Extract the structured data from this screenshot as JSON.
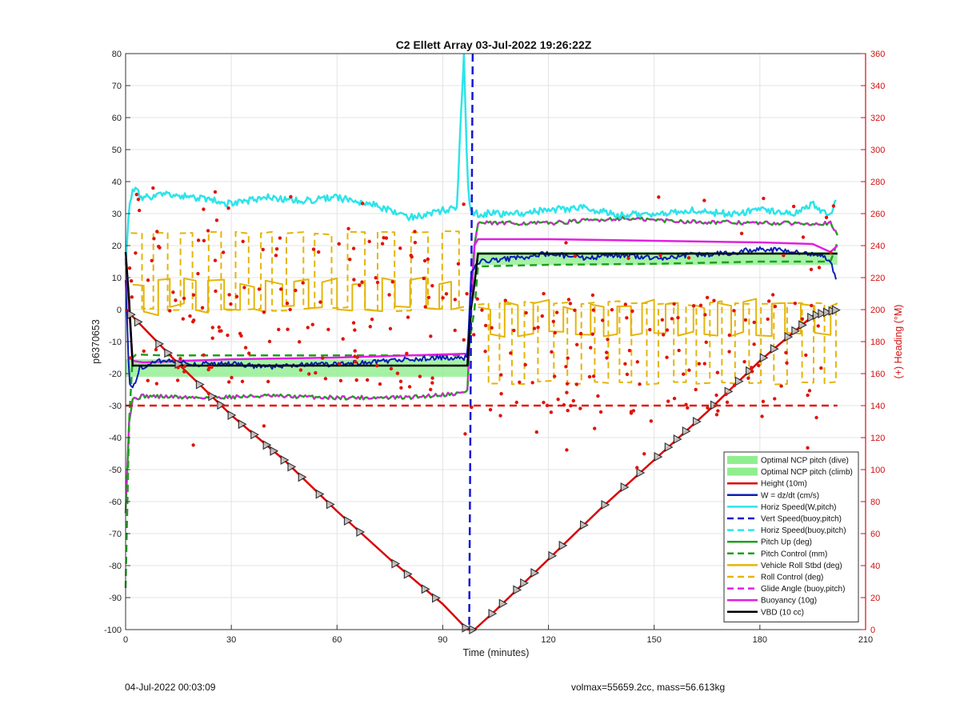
{
  "footer": {
    "date": "04-Jul-2022 00:03:09",
    "info": "volmax=55659.2cc, mass=56.613kg"
  },
  "chart_data": {
    "type": "line",
    "title": "C2 Ellett Array 03-Jul-2022 19:26:22Z",
    "xlabel": "Time (minutes)",
    "ylabel": "p6370653",
    "y2label": "(+) Heading (°M)",
    "xlim": [
      0,
      210
    ],
    "ylim": [
      -100,
      80
    ],
    "y2lim": [
      0,
      360
    ],
    "xticks": [
      0,
      30,
      60,
      90,
      120,
      150,
      180,
      210
    ],
    "yticks": [
      -100,
      -90,
      -80,
      -70,
      -60,
      -50,
      -40,
      -30,
      -20,
      -10,
      0,
      10,
      20,
      30,
      40,
      50,
      60,
      70,
      80
    ],
    "y2ticks": [
      0,
      20,
      40,
      60,
      80,
      100,
      120,
      140,
      160,
      180,
      200,
      220,
      240,
      260,
      280,
      300,
      320,
      340,
      360
    ],
    "grid": true,
    "legend_position": "bottom-right",
    "colors": {
      "ncp_band": "#8fef8f",
      "height": "#d90000",
      "w": "#0a1fb4",
      "horiz_speed": "#2de4ea",
      "vert_speed_buoy": "#1616d6",
      "horiz_speed_buoy": "#2de4ea",
      "pitch_up": "#1ea01e",
      "pitch_control": "#1ea01e",
      "roll": "#e3b50a",
      "roll_control": "#e3b50a",
      "glide_angle": "#e020e0",
      "buoyancy": "#e020e0",
      "vbd": "#000000",
      "heading": "#e0140c",
      "heading_axis": "#d01010"
    },
    "legend": [
      {
        "label": "Optimal NCP pitch (dive)",
        "style": "patch",
        "color": "#8fef8f"
      },
      {
        "label": "Optimal NCP pitch (climb)",
        "style": "patch",
        "color": "#8fef8f"
      },
      {
        "label": "Height (10m)",
        "style": "solid",
        "color": "#d90000"
      },
      {
        "label": "W = dz/dt (cm/s)",
        "style": "solid",
        "color": "#0a1fb4"
      },
      {
        "label": "Horiz Speed(W,pitch)",
        "style": "solid",
        "color": "#2de4ea"
      },
      {
        "label": "Vert Speed(buoy,pitch)",
        "style": "dashed",
        "color": "#1616d6"
      },
      {
        "label": "Horiz Speed(buoy,pitch)",
        "style": "dashed",
        "color": "#2de4ea"
      },
      {
        "label": "Pitch Up (deg)",
        "style": "solid",
        "color": "#1ea01e"
      },
      {
        "label": "Pitch Control (mm)",
        "style": "dashed",
        "color": "#1ea01e"
      },
      {
        "label": "Vehicle Roll Stbd (deg)",
        "style": "solid",
        "color": "#e3b50a"
      },
      {
        "label": "Roll Control (deg)",
        "style": "dashed",
        "color": "#e3b50a"
      },
      {
        "label": "Glide Angle (buoy,pitch)",
        "style": "dashed",
        "color": "#e020e0"
      },
      {
        "label": "Buoyancy (10g)",
        "style": "solid",
        "color": "#e020e0"
      },
      {
        "label": "VBD (10 cc)",
        "style": "solid",
        "color": "#000000"
      }
    ],
    "series": {
      "height": {
        "x": [
          0,
          1,
          15,
          30,
          45,
          60,
          75,
          90,
          97,
          98,
          99,
          105,
          120,
          135,
          150,
          165,
          180,
          195,
          202
        ],
        "y": [
          0,
          -1,
          -17,
          -33,
          -47,
          -63,
          -78,
          -92,
          -100,
          -100,
          -100,
          -94,
          -78,
          -62,
          -47,
          -32,
          -16,
          -2,
          0
        ]
      },
      "height_markers_x": [
        1.5,
        3.5,
        9.5,
        12,
        15,
        21,
        24.5,
        27,
        30,
        33,
        36.5,
        40,
        42,
        45,
        47,
        50,
        55,
        58,
        63,
        66.5,
        76.5,
        80,
        85,
        88,
        96.5,
        98.5,
        104,
        107,
        111,
        113,
        116,
        121,
        124,
        130,
        136,
        141.5,
        146,
        151,
        154,
        156.5,
        159,
        162,
        167,
        171,
        174,
        177,
        181,
        184,
        188,
        190,
        192,
        194.5,
        196,
        197.5,
        199,
        200.5,
        201.5
      ],
      "vbd": {
        "x": [
          0,
          1,
          2,
          4,
          96,
          97,
          98,
          99,
          100,
          202
        ],
        "y": [
          18,
          3,
          -17.5,
          -17.5,
          -17.5,
          -17.5,
          0,
          8,
          17.5,
          17.5
        ]
      },
      "buoyancy": {
        "x": [
          0,
          2,
          5,
          30,
          60,
          96,
          97,
          99,
          100,
          120,
          150,
          180,
          195,
          200,
          202
        ],
        "y": [
          16,
          -16,
          -16.5,
          -15.5,
          -15,
          -13.8,
          -13.8,
          20,
          22,
          22,
          21.5,
          21,
          20.5,
          18,
          20
        ]
      },
      "w": {
        "x": [
          0,
          1,
          2,
          4,
          6,
          10,
          20,
          30,
          40,
          50,
          60,
          70,
          80,
          90,
          95,
          96,
          97,
          98,
          99,
          100,
          110,
          120,
          130,
          140,
          150,
          160,
          170,
          180,
          190,
          198,
          200,
          202
        ],
        "y": [
          10,
          -22,
          -25,
          -18,
          -17.5,
          -16,
          -17,
          -17,
          -18,
          -17.2,
          -17,
          -16.5,
          -15.5,
          -15,
          -15,
          -15,
          -15,
          10,
          14,
          15,
          16,
          17.5,
          16,
          17,
          16,
          17,
          17.5,
          19,
          18,
          17,
          15,
          8
        ]
      },
      "horiz_speed": {
        "x": [
          0,
          1,
          2,
          3,
          5,
          10,
          20,
          30,
          40,
          50,
          60,
          70,
          80,
          85,
          90,
          94,
          96,
          97,
          98,
          100,
          110,
          120,
          130,
          140,
          150,
          160,
          170,
          180,
          190,
          195,
          200,
          202
        ],
        "y": [
          15,
          32,
          38,
          37,
          35,
          36,
          35,
          33,
          35,
          34,
          35,
          33,
          29,
          29.5,
          31,
          32,
          80,
          40,
          30,
          30,
          30,
          31,
          32,
          29.5,
          30,
          31,
          30,
          31,
          30,
          33,
          29,
          35
        ]
      },
      "pitch_up": {
        "x": [
          0,
          1,
          2,
          5,
          20,
          40,
          60,
          80,
          96,
          97,
          98,
          99,
          100,
          120,
          140,
          160,
          180,
          200,
          202
        ],
        "y": [
          -63,
          -35,
          -28,
          -27,
          -27.5,
          -27,
          -27.5,
          -27.5,
          -26,
          -25,
          0,
          20,
          27,
          27,
          28.5,
          27.5,
          27,
          27,
          23
        ]
      },
      "pitch_control": {
        "x": [
          0,
          1,
          2,
          3,
          10,
          50,
          96,
          97,
          99,
          100,
          120,
          150,
          180,
          200,
          202
        ],
        "y": [
          -87,
          -35,
          -15,
          -14,
          -14.3,
          -14.3,
          -14.3,
          -14.3,
          0,
          13.5,
          14,
          14.3,
          15,
          15,
          21
        ]
      },
      "roll_control_levels": [
        24,
        0
      ],
      "roll_control_levels_climb": [
        2,
        -23
      ],
      "roll_levels_dive": [
        9,
        0
      ],
      "roll_levels_climb": [
        2,
        -8
      ],
      "heading_deg_approx": [
        180,
        270,
        320,
        160,
        200,
        120,
        250,
        140,
        280,
        150,
        250,
        140,
        250,
        150,
        270,
        100,
        180,
        200,
        90,
        260,
        150,
        120,
        180,
        230,
        150,
        180,
        120,
        200,
        150,
        180,
        110,
        140,
        160,
        180,
        100,
        130,
        150,
        175,
        140,
        180
      ]
    },
    "ncp_band_dive": {
      "x": [
        0,
        97
      ],
      "y": [
        -21,
        -15.5
      ]
    },
    "ncp_band_climb": {
      "x": [
        98,
        202
      ],
      "y": [
        14,
        18
      ]
    }
  }
}
